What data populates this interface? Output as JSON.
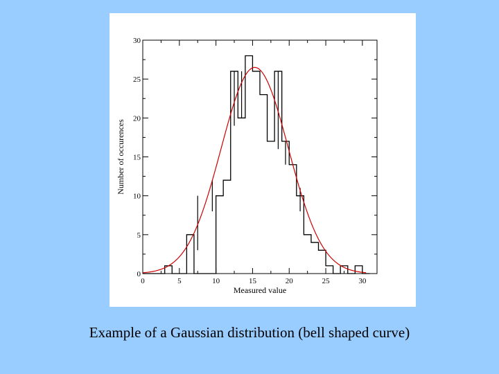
{
  "caption": "Example of a Gaussian distribution (bell shaped curve)",
  "colors": {
    "background": "#99ccff",
    "panel": "#ffffff",
    "histogram": "#000000",
    "fit_curve": "#cc0000"
  },
  "chart_data": {
    "type": "bar",
    "subtype": "histogram-with-gaussian-fit",
    "xlabel": "Measured value",
    "ylabel": "Number of occurences",
    "xlim": [
      0,
      32
    ],
    "ylim": [
      0,
      30
    ],
    "x_ticks": [
      0,
      5,
      10,
      15,
      20,
      25,
      30
    ],
    "y_ticks": [
      0,
      5,
      10,
      15,
      20,
      25,
      30
    ],
    "grid": false,
    "bins": {
      "edges": [
        0,
        1,
        2,
        3,
        4,
        5,
        6,
        7,
        8,
        9,
        10,
        11,
        12,
        13,
        14,
        15,
        16,
        17,
        18,
        19,
        20,
        21,
        22,
        23,
        24,
        25,
        26,
        27,
        28,
        29,
        30,
        31
      ],
      "counts": [
        0,
        0,
        0,
        1,
        0,
        0,
        5,
        0,
        0,
        0,
        10,
        12,
        26,
        20,
        28,
        26,
        23,
        17,
        26,
        17,
        14,
        10,
        5,
        4,
        3,
        1,
        0,
        1,
        0,
        1,
        0
      ]
    },
    "error_bars": [
      {
        "x": 7.5,
        "low": 3,
        "high": 10
      },
      {
        "x": 9.5,
        "low": 8,
        "high": 12
      },
      {
        "x": 12.5,
        "low": 19,
        "high": 26
      },
      {
        "x": 13.5,
        "low": 20,
        "high": 26
      },
      {
        "x": 18.5,
        "low": 16,
        "high": 26
      },
      {
        "x": 19.5,
        "low": 14,
        "high": 17
      },
      {
        "x": 21.5,
        "low": 8,
        "high": 11
      }
    ],
    "fit": {
      "name": "Gaussian fit",
      "mean": 15.3,
      "sigma": 4.6,
      "peak": 26.5
    }
  }
}
